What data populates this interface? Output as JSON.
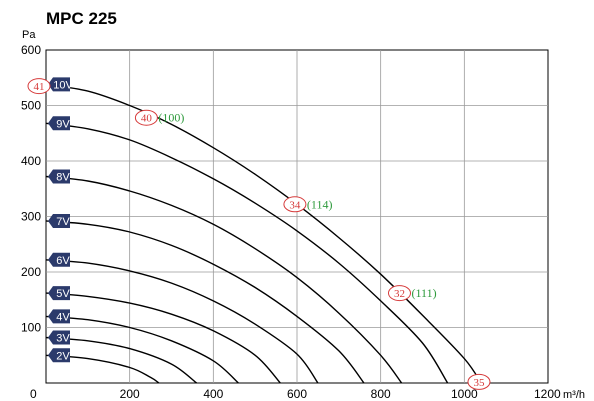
{
  "chart_data": {
    "type": "line",
    "title": "MPC 225",
    "ylabel": "Pa",
    "xunit": "m³/h",
    "xlim": [
      0,
      1200
    ],
    "ylim": [
      0,
      600
    ],
    "xticks": [
      0,
      200,
      400,
      600,
      800,
      1000,
      1200
    ],
    "yticks": [
      100,
      200,
      300,
      400,
      500,
      600
    ],
    "grid": true,
    "colors": {
      "curve": "#000000",
      "grid": "#9a9a9a",
      "tag_bg": "#2b3a6b",
      "tag_text": "#ffffff",
      "sound_label": "#d63a3a",
      "power_label": "#2e9a3c"
    },
    "series": [
      {
        "name": "10V",
        "points": [
          [
            0,
            538
          ],
          [
            100,
            526
          ],
          [
            200,
            500
          ],
          [
            300,
            466
          ],
          [
            400,
            424
          ],
          [
            500,
            376
          ],
          [
            600,
            322
          ],
          [
            700,
            262
          ],
          [
            800,
            196
          ],
          [
            900,
            122
          ],
          [
            1000,
            44
          ],
          [
            1040,
            0
          ]
        ]
      },
      {
        "name": "9V",
        "points": [
          [
            0,
            468
          ],
          [
            100,
            458
          ],
          [
            200,
            438
          ],
          [
            300,
            406
          ],
          [
            400,
            368
          ],
          [
            500,
            324
          ],
          [
            600,
            274
          ],
          [
            700,
            216
          ],
          [
            800,
            148
          ],
          [
            900,
            72
          ],
          [
            960,
            0
          ]
        ]
      },
      {
        "name": "8V",
        "points": [
          [
            0,
            372
          ],
          [
            100,
            364
          ],
          [
            200,
            346
          ],
          [
            300,
            320
          ],
          [
            400,
            286
          ],
          [
            500,
            242
          ],
          [
            600,
            190
          ],
          [
            700,
            126
          ],
          [
            800,
            50
          ],
          [
            850,
            0
          ]
        ]
      },
      {
        "name": "7V",
        "points": [
          [
            0,
            292
          ],
          [
            100,
            286
          ],
          [
            200,
            272
          ],
          [
            300,
            248
          ],
          [
            400,
            214
          ],
          [
            500,
            172
          ],
          [
            600,
            120
          ],
          [
            700,
            58
          ],
          [
            760,
            0
          ]
        ]
      },
      {
        "name": "6V",
        "points": [
          [
            0,
            222
          ],
          [
            100,
            216
          ],
          [
            200,
            202
          ],
          [
            300,
            180
          ],
          [
            400,
            148
          ],
          [
            500,
            106
          ],
          [
            600,
            52
          ],
          [
            650,
            0
          ]
        ]
      },
      {
        "name": "5V",
        "points": [
          [
            0,
            162
          ],
          [
            100,
            156
          ],
          [
            200,
            144
          ],
          [
            300,
            124
          ],
          [
            400,
            94
          ],
          [
            500,
            50
          ],
          [
            560,
            0
          ]
        ]
      },
      {
        "name": "4V",
        "points": [
          [
            0,
            120
          ],
          [
            100,
            114
          ],
          [
            200,
            100
          ],
          [
            300,
            76
          ],
          [
            400,
            40
          ],
          [
            460,
            0
          ]
        ]
      },
      {
        "name": "3V",
        "points": [
          [
            0,
            82
          ],
          [
            100,
            76
          ],
          [
            200,
            62
          ],
          [
            300,
            34
          ],
          [
            360,
            0
          ]
        ]
      },
      {
        "name": "2V",
        "points": [
          [
            0,
            50
          ],
          [
            100,
            44
          ],
          [
            200,
            28
          ],
          [
            250,
            10
          ],
          [
            270,
            0
          ]
        ]
      }
    ],
    "tag_positions": [
      {
        "label": "10V",
        "y": 538
      },
      {
        "label": "9V",
        "y": 468
      },
      {
        "label": "8V",
        "y": 372
      },
      {
        "label": "7V",
        "y": 292
      },
      {
        "label": "6V",
        "y": 222
      },
      {
        "label": "5V",
        "y": 162
      },
      {
        "label": "4V",
        "y": 120
      },
      {
        "label": "3V",
        "y": 82
      },
      {
        "label": "2V",
        "y": 50
      }
    ],
    "annotations": [
      {
        "sound": "41",
        "x": 0,
        "y": 535
      },
      {
        "sound": "40",
        "power": "(100)",
        "x": 240,
        "y": 478
      },
      {
        "sound": "34",
        "power": "(114)",
        "x": 595,
        "y": 322
      },
      {
        "sound": "32",
        "power": "(111)",
        "x": 845,
        "y": 162
      },
      {
        "sound": "35",
        "x": 1035,
        "y": 2
      }
    ]
  }
}
